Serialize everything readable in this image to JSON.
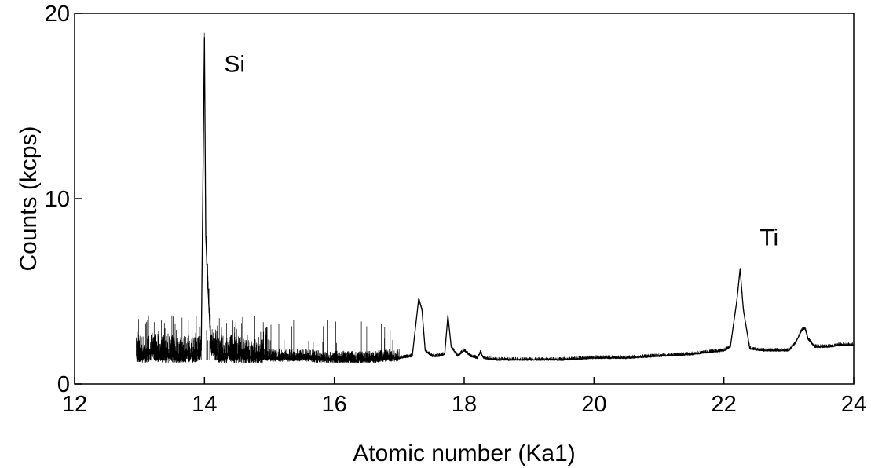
{
  "chart_data": {
    "type": "line",
    "title": "",
    "xlabel": "Atomic number (Ka1)",
    "ylabel": "Counts (kcps)",
    "xlim": [
      12,
      24
    ],
    "ylim": [
      0,
      20
    ],
    "x_ticks": [
      "12",
      "14",
      "16",
      "18",
      "20",
      "22",
      "24"
    ],
    "y_ticks": [
      "0",
      "10",
      "20"
    ],
    "grid": false,
    "legend": "none",
    "line_color": "#000000",
    "annotations": [
      {
        "text": "Si",
        "x": 14.0,
        "y": 18.7
      },
      {
        "text": "Ti",
        "x": 22.25,
        "y": 6.2
      }
    ],
    "series": [
      {
        "x": [
          12.95,
          13.0,
          13.1,
          13.2,
          13.3,
          13.4,
          13.5,
          13.6,
          13.7,
          13.8,
          13.9,
          13.95,
          14.0,
          14.02,
          14.05,
          14.1,
          14.2,
          14.3,
          14.4,
          14.5,
          14.6,
          14.7,
          14.8,
          15.0,
          15.2,
          15.4,
          15.6,
          15.8,
          16.0,
          16.2,
          16.4,
          16.6,
          16.8,
          17.0,
          17.2,
          17.3,
          17.35,
          17.4,
          17.5,
          17.6,
          17.7,
          17.75,
          17.8,
          17.9,
          18.0,
          18.1,
          18.2,
          18.25,
          18.3,
          18.5,
          19.0,
          19.5,
          20.0,
          20.5,
          21.0,
          21.5,
          22.0,
          22.1,
          22.2,
          22.25,
          22.3,
          22.4,
          22.6,
          22.8,
          23.0,
          23.1,
          23.2,
          23.25,
          23.3,
          23.4,
          23.6,
          23.8,
          24.0
        ],
        "y": [
          1.5,
          1.6,
          1.5,
          1.7,
          1.6,
          1.5,
          1.6,
          1.5,
          1.6,
          1.5,
          1.6,
          1.8,
          18.7,
          8.0,
          5.5,
          2.0,
          1.6,
          1.5,
          1.6,
          1.5,
          1.5,
          1.4,
          1.5,
          1.4,
          1.4,
          1.4,
          1.4,
          1.3,
          1.3,
          1.3,
          1.3,
          1.3,
          1.4,
          1.4,
          1.5,
          4.6,
          4.0,
          1.8,
          1.5,
          1.5,
          1.6,
          3.7,
          2.0,
          1.5,
          1.8,
          1.5,
          1.4,
          1.7,
          1.4,
          1.3,
          1.3,
          1.3,
          1.4,
          1.4,
          1.5,
          1.6,
          1.8,
          2.0,
          4.5,
          6.2,
          4.0,
          1.9,
          1.8,
          1.8,
          1.8,
          2.2,
          2.9,
          3.0,
          2.4,
          2.0,
          2.0,
          2.1,
          2.1
        ]
      }
    ]
  }
}
